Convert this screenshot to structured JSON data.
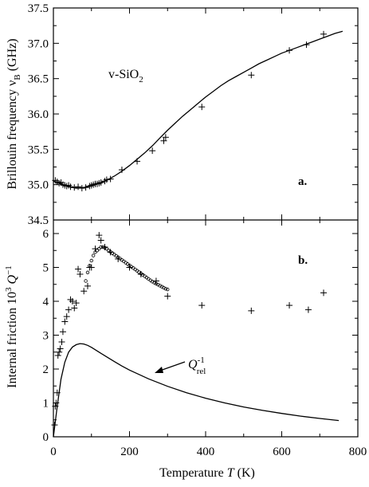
{
  "chart_data": [
    {
      "type": "scatter",
      "panel_label": "a.",
      "annotation": {
        "main": "v-SiO",
        "sub": "2"
      },
      "ylabel": {
        "main": "Brillouin frequency  ν",
        "sub": "B",
        "unit": " (GHz)"
      },
      "xlim": [
        0,
        800
      ],
      "ylim": [
        34.5,
        37.5
      ],
      "yticks": [
        "34.5",
        "35.0",
        "35.5",
        "36.0",
        "36.5",
        "37.0",
        "37.5"
      ],
      "series": [
        {
          "marker": "plus",
          "x": [
            5,
            10,
            15,
            20,
            25,
            30,
            35,
            40,
            45,
            55,
            65,
            75,
            85,
            95,
            100,
            105,
            110,
            115,
            120,
            125,
            135,
            140,
            150,
            180,
            220,
            260,
            290,
            295,
            390,
            520,
            620,
            665,
            710
          ],
          "y": [
            35.06,
            35.04,
            35.02,
            35.03,
            35.0,
            34.99,
            34.98,
            34.99,
            34.97,
            34.96,
            34.97,
            34.95,
            34.96,
            34.98,
            34.99,
            35.0,
            35.01,
            35.01,
            35.02,
            35.03,
            35.05,
            35.07,
            35.08,
            35.21,
            35.33,
            35.48,
            35.62,
            35.67,
            36.1,
            36.55,
            36.9,
            36.98,
            37.13
          ]
        },
        {
          "marker": "line",
          "x": [
            0,
            20,
            40,
            60,
            80,
            100,
            120,
            140,
            160,
            180,
            200,
            220,
            240,
            260,
            280,
            300,
            320,
            340,
            360,
            380,
            400,
            420,
            440,
            460,
            480,
            500,
            520,
            540,
            560,
            580,
            600,
            620,
            640,
            660,
            680,
            700,
            720,
            740,
            760
          ],
          "y": [
            35.05,
            35.01,
            34.97,
            34.95,
            34.96,
            34.98,
            35.02,
            35.06,
            35.12,
            35.19,
            35.27,
            35.36,
            35.45,
            35.55,
            35.66,
            35.77,
            35.87,
            35.97,
            36.06,
            36.15,
            36.24,
            36.32,
            36.4,
            36.47,
            36.53,
            36.59,
            36.65,
            36.71,
            36.76,
            36.81,
            36.86,
            36.9,
            36.94,
            36.98,
            37.02,
            37.06,
            37.1,
            37.14,
            37.17
          ]
        }
      ]
    },
    {
      "type": "scatter",
      "panel_label": "b.",
      "xlabel": {
        "main": "Temperature ",
        "italic": "T",
        "unit": " (K)"
      },
      "ylabel": {
        "main": "Internal friction  10",
        "sup": "3",
        "q": "Q",
        "qsup": "−1"
      },
      "annotation": {
        "q": "Q",
        "sup": "-1",
        "sub": "rel"
      },
      "xlim": [
        0,
        800
      ],
      "ylim": [
        0,
        6.4
      ],
      "xticks": [
        "0",
        "200",
        "400",
        "600",
        "800"
      ],
      "yticks": [
        "0",
        "1",
        "2",
        "3",
        "4",
        "5",
        "6"
      ],
      "series": [
        {
          "marker": "plus",
          "x": [
            3,
            5,
            7,
            10,
            12,
            15,
            18,
            22,
            25,
            30,
            35,
            40,
            45,
            50,
            55,
            60,
            65,
            70,
            80,
            90,
            95,
            100,
            110,
            120,
            125,
            135,
            150,
            170,
            200,
            230,
            270,
            300,
            390,
            520,
            620,
            670,
            710
          ],
          "y": [
            0.35,
            0.9,
            1.0,
            1.3,
            2.4,
            2.5,
            2.6,
            2.8,
            3.1,
            3.4,
            3.55,
            3.75,
            4.05,
            4.0,
            3.8,
            3.95,
            4.95,
            4.8,
            4.3,
            4.45,
            5.0,
            5.0,
            5.55,
            5.95,
            5.8,
            5.6,
            5.45,
            5.25,
            5.0,
            4.8,
            4.6,
            4.15,
            3.88,
            3.72,
            3.88,
            3.75,
            4.25
          ]
        },
        {
          "marker": "circle",
          "x": [
            85,
            90,
            95,
            100,
            105,
            110,
            115,
            120,
            125,
            130,
            135,
            140,
            145,
            150,
            155,
            160,
            165,
            170,
            175,
            180,
            185,
            190,
            195,
            200,
            205,
            210,
            215,
            220,
            225,
            230,
            235,
            240,
            245,
            250,
            255,
            260,
            265,
            270,
            275,
            280,
            285,
            290,
            295,
            300
          ],
          "y": [
            4.6,
            4.85,
            5.05,
            5.2,
            5.35,
            5.45,
            5.5,
            5.55,
            5.6,
            5.6,
            5.58,
            5.55,
            5.5,
            5.46,
            5.42,
            5.38,
            5.34,
            5.3,
            5.26,
            5.22,
            5.18,
            5.14,
            5.1,
            5.06,
            5.02,
            4.98,
            4.94,
            4.9,
            4.86,
            4.82,
            4.78,
            4.74,
            4.7,
            4.66,
            4.62,
            4.58,
            4.55,
            4.52,
            4.49,
            4.46,
            4.43,
            4.4,
            4.37,
            4.35
          ]
        },
        {
          "marker": "line",
          "x": [
            0,
            10,
            20,
            30,
            40,
            50,
            60,
            70,
            80,
            90,
            100,
            120,
            140,
            160,
            180,
            200,
            250,
            300,
            350,
            400,
            450,
            500,
            550,
            600,
            650,
            700,
            750
          ],
          "y": [
            0.0,
            0.9,
            1.7,
            2.2,
            2.5,
            2.65,
            2.72,
            2.75,
            2.74,
            2.7,
            2.64,
            2.5,
            2.36,
            2.22,
            2.09,
            1.97,
            1.71,
            1.49,
            1.3,
            1.14,
            1.0,
            0.88,
            0.78,
            0.69,
            0.61,
            0.54,
            0.48
          ]
        }
      ]
    }
  ]
}
